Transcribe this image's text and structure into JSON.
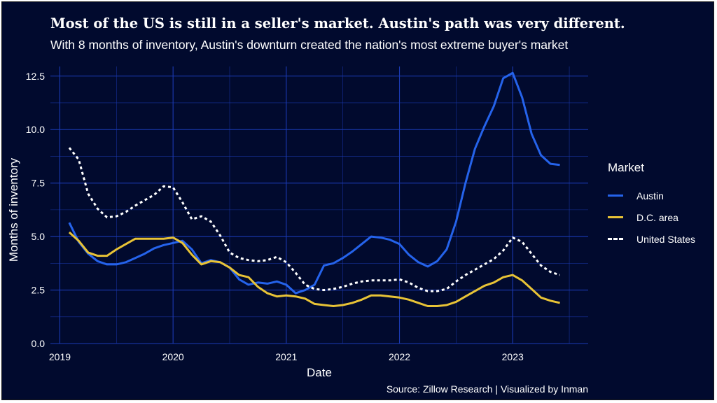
{
  "chart_data": {
    "type": "line",
    "title": "Most of the US is still in a seller's market. Austin's path was very different.",
    "subtitle": "With 8 months of inventory, Austin's downturn created the nation's most extreme buyer's market",
    "xlabel": "Date",
    "ylabel": "Months of inventory",
    "source": "Source: Zillow Research | Visualized by Inman",
    "x": [
      "2019-02",
      "2019-03",
      "2019-04",
      "2019-05",
      "2019-06",
      "2019-07",
      "2019-08",
      "2019-09",
      "2019-10",
      "2019-11",
      "2019-12",
      "2020-01",
      "2020-02",
      "2020-03",
      "2020-04",
      "2020-05",
      "2020-06",
      "2020-07",
      "2020-08",
      "2020-09",
      "2020-10",
      "2020-11",
      "2020-12",
      "2021-01",
      "2021-02",
      "2021-03",
      "2021-04",
      "2021-05",
      "2021-06",
      "2021-07",
      "2021-08",
      "2021-09",
      "2021-10",
      "2021-11",
      "2021-12",
      "2022-01",
      "2022-02",
      "2022-03",
      "2022-04",
      "2022-05",
      "2022-06",
      "2022-07",
      "2022-08",
      "2022-09",
      "2022-10",
      "2022-11",
      "2022-12",
      "2023-01",
      "2023-02",
      "2023-03",
      "2023-04",
      "2023-05",
      "2023-06"
    ],
    "series": [
      {
        "name": "Austin",
        "color": "#2563eb",
        "dash": "solid",
        "values": [
          5.65,
          4.75,
          4.2,
          3.85,
          3.7,
          3.7,
          3.8,
          4.0,
          4.2,
          4.45,
          4.6,
          4.7,
          4.8,
          4.4,
          3.75,
          3.9,
          3.8,
          3.55,
          3.0,
          2.75,
          2.85,
          2.8,
          2.9,
          2.75,
          2.35,
          2.5,
          2.75,
          3.65,
          3.75,
          4.0,
          4.3,
          4.65,
          5.0,
          4.95,
          4.85,
          4.65,
          4.15,
          3.8,
          3.6,
          3.85,
          4.4,
          5.7,
          7.5,
          9.1,
          10.15,
          11.1,
          12.4,
          12.65,
          11.5,
          9.8,
          8.8,
          8.4,
          8.35
        ]
      },
      {
        "name": "D.C. area",
        "color": "#e8c336",
        "dash": "solid",
        "values": [
          5.2,
          4.8,
          4.25,
          4.1,
          4.1,
          4.4,
          4.65,
          4.9,
          4.9,
          4.9,
          4.9,
          4.95,
          4.7,
          4.15,
          3.7,
          3.85,
          3.8,
          3.55,
          3.2,
          3.1,
          2.65,
          2.35,
          2.2,
          2.25,
          2.2,
          2.1,
          1.85,
          1.8,
          1.75,
          1.8,
          1.9,
          2.05,
          2.25,
          2.25,
          2.2,
          2.15,
          2.05,
          1.9,
          1.75,
          1.75,
          1.8,
          1.95,
          2.2,
          2.45,
          2.7,
          2.85,
          3.1,
          3.2,
          2.95,
          2.55,
          2.15,
          2.0,
          1.9
        ]
      },
      {
        "name": "United States",
        "color": "#ffffff",
        "dash": "dotted",
        "values": [
          9.15,
          8.6,
          7.0,
          6.3,
          5.9,
          5.95,
          6.15,
          6.45,
          6.7,
          6.95,
          7.35,
          7.3,
          6.6,
          5.8,
          5.95,
          5.7,
          5.05,
          4.25,
          4.0,
          3.9,
          3.85,
          3.9,
          4.05,
          3.8,
          3.3,
          2.75,
          2.55,
          2.5,
          2.55,
          2.65,
          2.8,
          2.9,
          2.95,
          2.95,
          2.95,
          3.0,
          2.85,
          2.6,
          2.45,
          2.45,
          2.55,
          2.9,
          3.2,
          3.45,
          3.7,
          3.95,
          4.35,
          4.95,
          4.75,
          4.2,
          3.65,
          3.35,
          3.2
        ]
      }
    ],
    "x_ticks": [
      "2019",
      "2020",
      "2021",
      "2022",
      "2023"
    ],
    "y_ticks": [
      "0.0",
      "2.5",
      "5.0",
      "7.5",
      "10.0",
      "12.5"
    ],
    "ylim": [
      0,
      12.95
    ],
    "xlim": [
      "2018-12",
      "2023-09"
    ],
    "grid": true,
    "legend_title": "Market",
    "legend_position": "right",
    "background": "#010a2e",
    "grid_color": "#1b3ab4"
  }
}
